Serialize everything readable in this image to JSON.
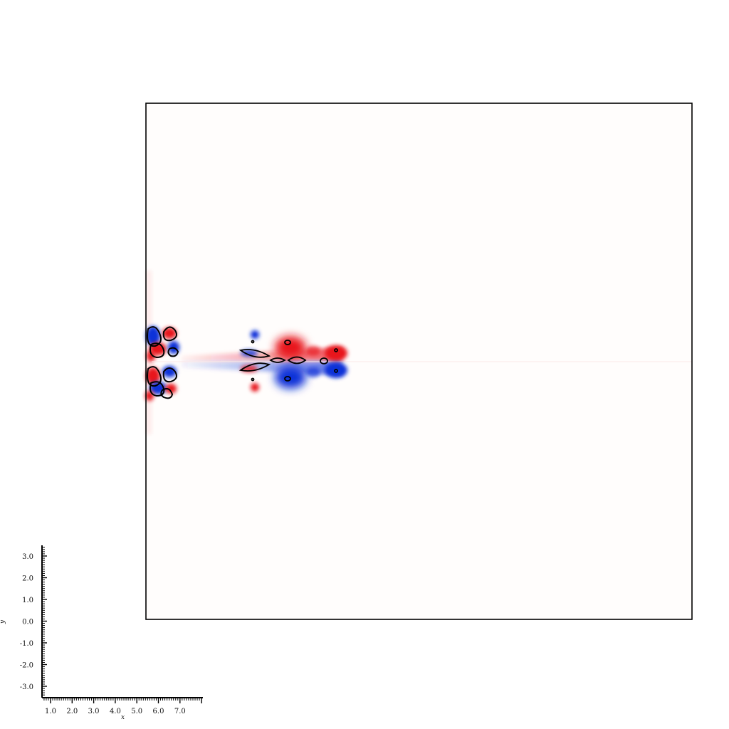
{
  "field": {
    "colors": {
      "positive": "#e8141c",
      "negative": "#1030d8",
      "contour": "#000000",
      "background": "#ffffff",
      "frame": "#000000"
    }
  },
  "mini_axes": {
    "x_label": "x",
    "y_label": "y",
    "x_ticks": [
      "1.0",
      "2.0",
      "3.0",
      "4.0",
      "5.0",
      "6.0",
      "7.0"
    ],
    "y_ticks": [
      "3.0",
      "2.0",
      "1.0",
      "0.0",
      "-1.0",
      "-2.0",
      "-3.0"
    ]
  }
}
